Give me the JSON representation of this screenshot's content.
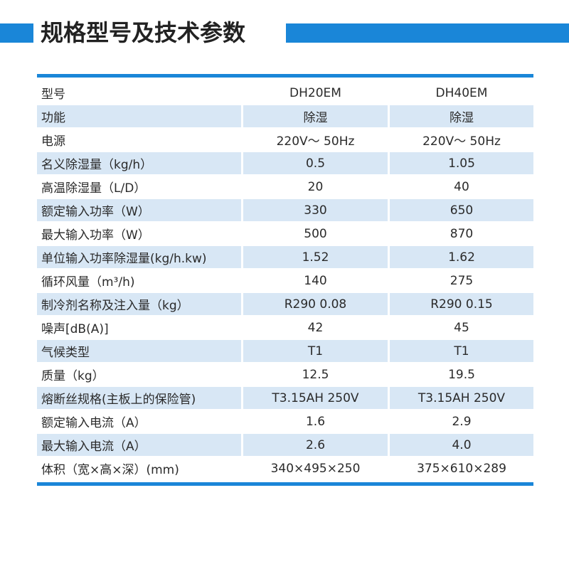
{
  "header": {
    "title": "规格型号及技术参数",
    "accent_color": "#1a86d8"
  },
  "table": {
    "shade_color": "#d8e7f5",
    "rows": [
      {
        "label": "型号",
        "v1": "DH20EM",
        "v2": "DH40EM"
      },
      {
        "label": "功能",
        "v1": "除湿",
        "v2": "除湿"
      },
      {
        "label": "电源",
        "v1": "220V～ 50Hz",
        "v2": "220V～ 50Hz"
      },
      {
        "label": "名义除湿量（kg/h）",
        "v1": "0.5",
        "v2": "1.05"
      },
      {
        "label": "高温除湿量（L/D）",
        "v1": "20",
        "v2": "40"
      },
      {
        "label": "额定输入功率（W）",
        "v1": "330",
        "v2": "650"
      },
      {
        "label": "最大输入功率（W）",
        "v1": "500",
        "v2": "870"
      },
      {
        "label": "单位输入功率除湿量(kg/h.kw)",
        "v1": "1.52",
        "v2": "1.62"
      },
      {
        "label": "循环风量（m³/h)",
        "v1": "140",
        "v2": "275"
      },
      {
        "label": "制冷剂名称及注入量（kg）",
        "v1": "R290  0.08",
        "v2": "R290  0.15"
      },
      {
        "label": "噪声[dB(A)]",
        "v1": "42",
        "v2": "45"
      },
      {
        "label": "气候类型",
        "v1": "T1",
        "v2": "T1"
      },
      {
        "label": "质量（kg）",
        "v1": "12.5",
        "v2": "19.5"
      },
      {
        "label": "熔断丝规格(主板上的保险管)",
        "v1": "T3.15AH 250V",
        "v2": "T3.15AH 250V"
      },
      {
        "label": "额定输入电流（A）",
        "v1": "1.6",
        "v2": "2.9"
      },
      {
        "label": "最大输入电流（A）",
        "v1": "2.6",
        "v2": "4.0"
      },
      {
        "label": "体积（宽×高×深）(mm)",
        "v1": "340×495×250",
        "v2": "375×610×289"
      }
    ]
  }
}
